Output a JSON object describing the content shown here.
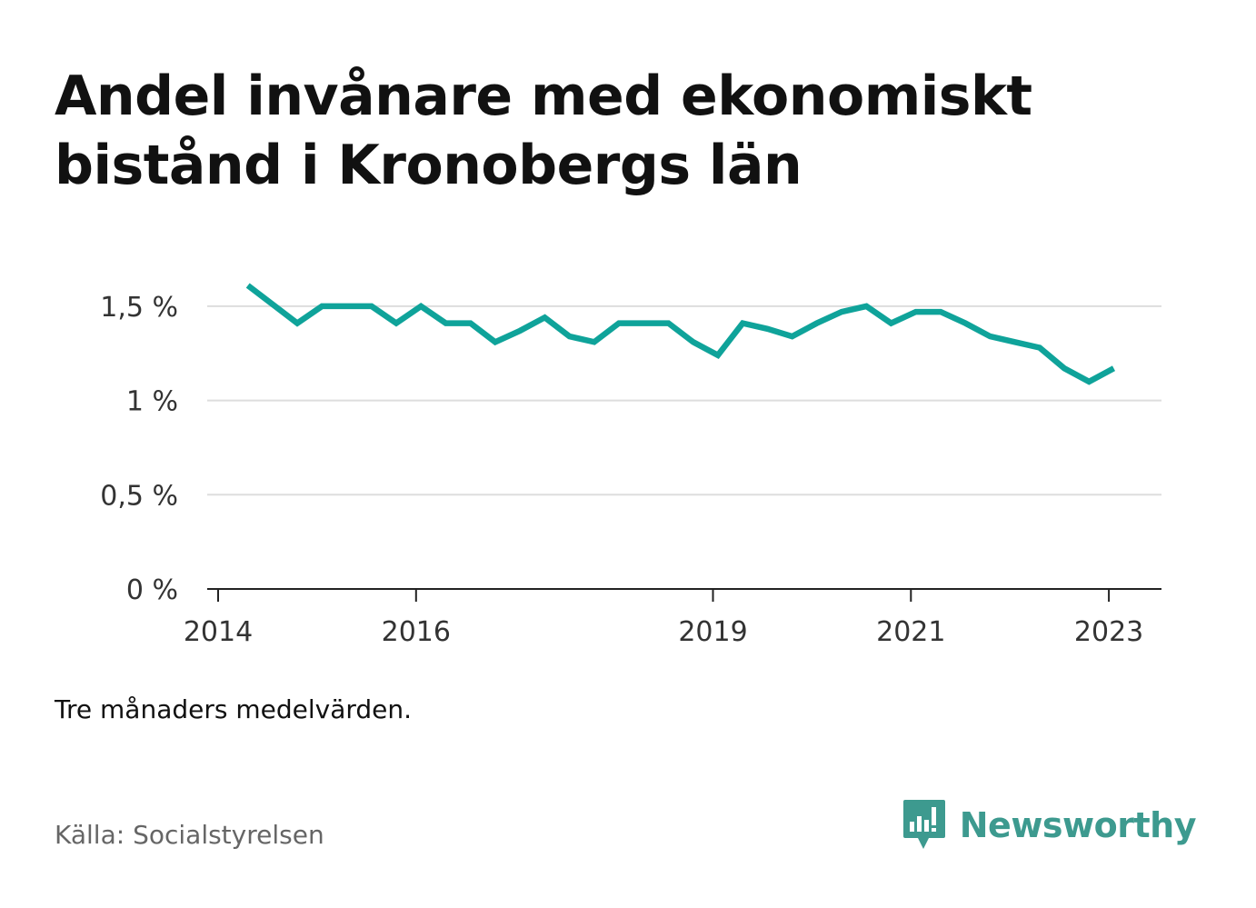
{
  "title": "Andel invånare med ekonomiskt bistånd i Kronobergs län",
  "note": "Tre månaders medelvärden.",
  "source": "Källa: Socialstyrelsen",
  "brand": {
    "name": "Newsworthy",
    "icon": "newsworthy-logo-icon",
    "color": "#3d9a8f"
  },
  "chart_data": {
    "type": "line",
    "title": "Andel invånare med ekonomiskt bistånd i Kronobergs län",
    "xlabel": "",
    "ylabel": "",
    "line_color": "#0fa39a",
    "grid": true,
    "legend": "none",
    "xlim": [
      2014.0,
      2024.0
    ],
    "ylim": [
      0,
      1.75
    ],
    "x_ticks": [
      2014,
      2016,
      2019,
      2021,
      2023
    ],
    "x_tick_labels": [
      "2014",
      "2016",
      "2019",
      "2021",
      "2023"
    ],
    "y_ticks": [
      0,
      0.5,
      1,
      1.5
    ],
    "y_tick_labels": [
      "0 %",
      "0,5 %",
      "1 %",
      "1,5 %"
    ],
    "series": [
      {
        "x": [
          2014.3,
          2014.55,
          2014.8,
          2015.05,
          2015.3,
          2015.55,
          2015.8,
          2016.05,
          2016.3,
          2016.55,
          2016.8,
          2017.05,
          2017.3,
          2017.55,
          2017.8,
          2018.05,
          2018.3,
          2018.55,
          2018.8,
          2019.05,
          2019.3,
          2019.55,
          2019.8,
          2020.05,
          2020.3,
          2020.55,
          2020.8,
          2021.05,
          2021.3,
          2021.55,
          2021.8,
          2022.05,
          2022.3,
          2022.55,
          2022.8,
          2023.05
        ],
        "values": [
          1.61,
          1.51,
          1.41,
          1.5,
          1.5,
          1.5,
          1.41,
          1.5,
          1.41,
          1.41,
          1.31,
          1.37,
          1.44,
          1.34,
          1.31,
          1.41,
          1.41,
          1.41,
          1.31,
          1.24,
          1.41,
          1.38,
          1.34,
          1.41,
          1.47,
          1.5,
          1.41,
          1.47,
          1.47,
          1.41,
          1.34,
          1.31,
          1.28,
          1.17,
          1.1,
          1.17
        ]
      }
    ]
  }
}
